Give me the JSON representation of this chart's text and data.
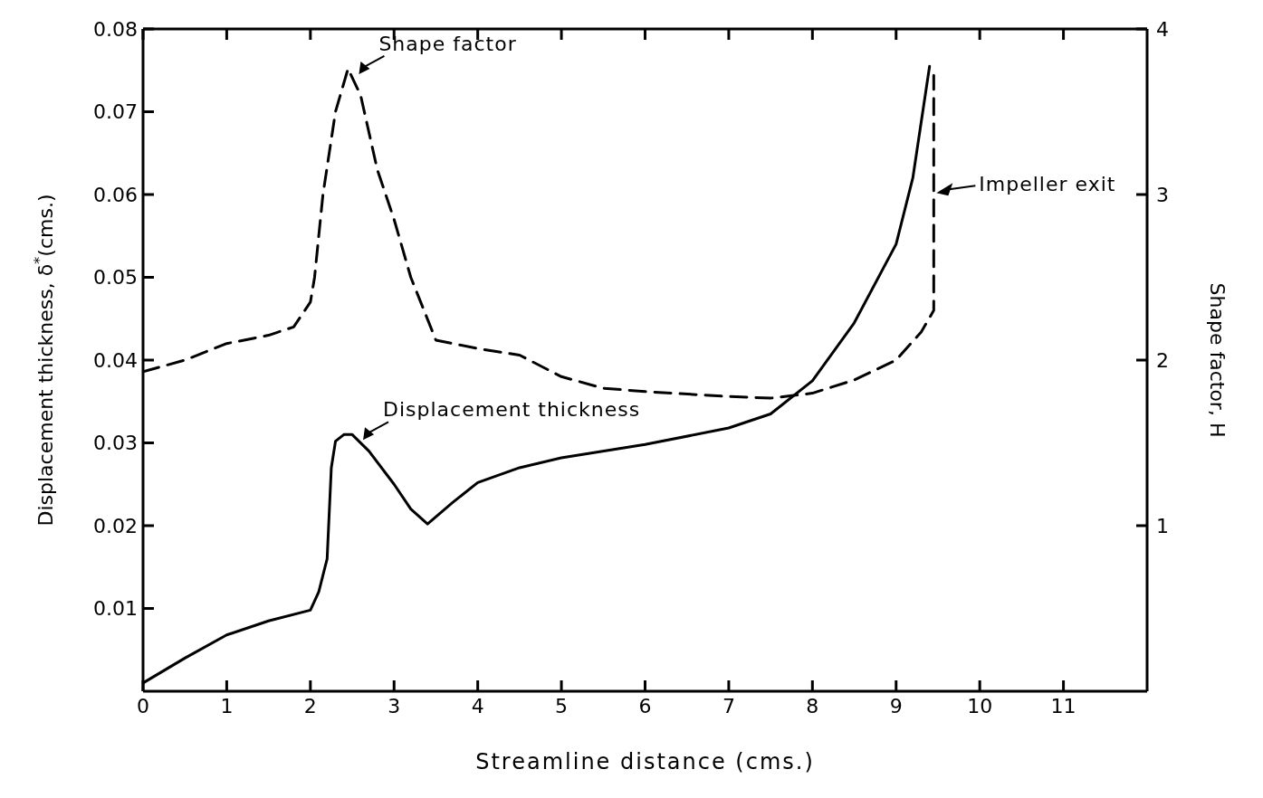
{
  "chart_data": {
    "type": "line",
    "xlabel": "Streamline distance (cms.)",
    "ylabel": "Displacement thickness, δ$^{*}$(cms.)",
    "y2label": "Shape factor, H",
    "xlim": [
      0,
      12
    ],
    "xticks": [
      0,
      1,
      2,
      3,
      4,
      5,
      6,
      7,
      8,
      9,
      10,
      11
    ],
    "ylim": [
      0,
      0.08
    ],
    "yticks": [
      0.01,
      0.02,
      0.03,
      0.04,
      0.05,
      0.06,
      0.07,
      0.08
    ],
    "y2lim": [
      0,
      4
    ],
    "y2ticks": [
      1,
      2,
      3,
      4
    ],
    "series": [
      {
        "color": "#000000",
        "line_style": "solid",
        "x": [
          0,
          0.5,
          1,
          1.5,
          2,
          2.1,
          2.2,
          2.25,
          2.3,
          2.4,
          2.5,
          2.7,
          3,
          3.2,
          3.4,
          3.7,
          4,
          4.5,
          5,
          6,
          7,
          7.5,
          8,
          8.5,
          9,
          9.2,
          9.4
        ],
        "values": [
          0.001,
          0.004,
          0.0068,
          0.0085,
          0.0098,
          0.012,
          0.016,
          0.027,
          0.0302,
          0.031,
          0.031,
          0.029,
          0.025,
          0.022,
          0.0202,
          0.0228,
          0.0252,
          0.027,
          0.0282,
          0.0298,
          0.0318,
          0.0335,
          0.0375,
          0.0445,
          0.054,
          0.062,
          0.0755
        ]
      },
      {
        "color": "#000000",
        "line_style": "dashed",
        "axis": "y2",
        "x": [
          0,
          0.5,
          1,
          1.5,
          1.8,
          2,
          2.05,
          2.15,
          2.3,
          2.45,
          2.6,
          2.8,
          3,
          3.2,
          3.5,
          4,
          4.5,
          5,
          5.5,
          6,
          7,
          7.5,
          8,
          8.5,
          9,
          9.3,
          9.45,
          9.45
        ],
        "values": [
          1.93,
          2.0,
          2.1,
          2.15,
          2.2,
          2.35,
          2.5,
          3.0,
          3.5,
          3.76,
          3.6,
          3.15,
          2.85,
          2.5,
          2.12,
          2.07,
          2.03,
          1.9,
          1.83,
          1.81,
          1.78,
          1.77,
          1.8,
          1.88,
          2.0,
          2.17,
          2.3,
          3.72
        ]
      }
    ],
    "annotations": [
      "Displacement thickness",
      "Shape factor",
      "Impeller exit"
    ]
  }
}
